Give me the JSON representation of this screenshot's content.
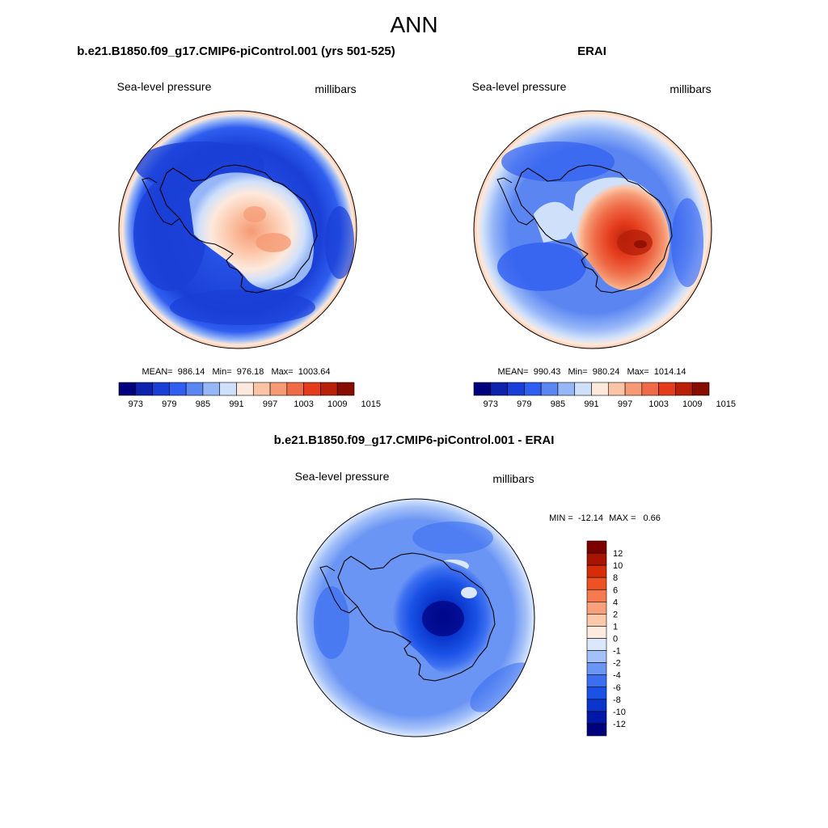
{
  "page_title": "ANN",
  "colors": {
    "abs_scale": [
      "#00007f",
      "#0d22ad",
      "#1a3fd6",
      "#2f5ef0",
      "#5b86f2",
      "#96b6f7",
      "#cfe0fb",
      "#fde9dc",
      "#fbc4a6",
      "#f59a74",
      "#ef6b48",
      "#e43b1c",
      "#b8200a",
      "#870d00"
    ],
    "diff_scale": [
      "#00007f",
      "#0018a8",
      "#0a35cc",
      "#1a52e6",
      "#3c6ff0",
      "#6b95f4",
      "#a3c0f8",
      "#dbe8fc",
      "#fdebe0",
      "#fbc8aa",
      "#f8a07c",
      "#f57a50",
      "#ef5222",
      "#d52d08",
      "#a81400",
      "#7d0000"
    ]
  },
  "chart_data": [
    {
      "type": "heatmap",
      "projection": "south-polar-stereographic",
      "title": "b.e21.B1850.f09_g17.CMIP6-piControl.001 (yrs 501-525)",
      "left_label": "Sea-level pressure",
      "right_label": "millibars",
      "stats": {
        "mean_label": "MEAN=",
        "mean": "986.14",
        "min_label": "Min=",
        "min": "976.18",
        "max_label": "Max=",
        "max": "1003.64"
      },
      "colorbar": {
        "orientation": "horizontal",
        "labels": [
          "973",
          "979",
          "985",
          "991",
          "997",
          "1003",
          "1009",
          "1015"
        ]
      }
    },
    {
      "type": "heatmap",
      "projection": "south-polar-stereographic",
      "title": "ERAI",
      "left_label": "Sea-level pressure",
      "right_label": "millibars",
      "stats": {
        "mean_label": "MEAN=",
        "mean": "990.43",
        "min_label": "Min=",
        "min": "980.24",
        "max_label": "Max=",
        "max": "1014.14"
      },
      "colorbar": {
        "orientation": "horizontal",
        "labels": [
          "973",
          "979",
          "985",
          "991",
          "997",
          "1003",
          "1009",
          "1015"
        ]
      }
    },
    {
      "type": "heatmap",
      "projection": "south-polar-stereographic",
      "title": "b.e21.B1850.f09_g17.CMIP6-piControl.001 - ERAI",
      "left_label": "Sea-level pressure",
      "right_label": "millibars",
      "stats": {
        "min_label": "MIN =",
        "min": "-12.14",
        "max_label": "MAX =",
        "max": "0.66"
      },
      "colorbar": {
        "orientation": "vertical",
        "labels": [
          "12",
          "10",
          "8",
          "6",
          "4",
          "2",
          "1",
          "0",
          "-1",
          "-2",
          "-4",
          "-6",
          "-8",
          "-10",
          "-12"
        ]
      }
    }
  ]
}
